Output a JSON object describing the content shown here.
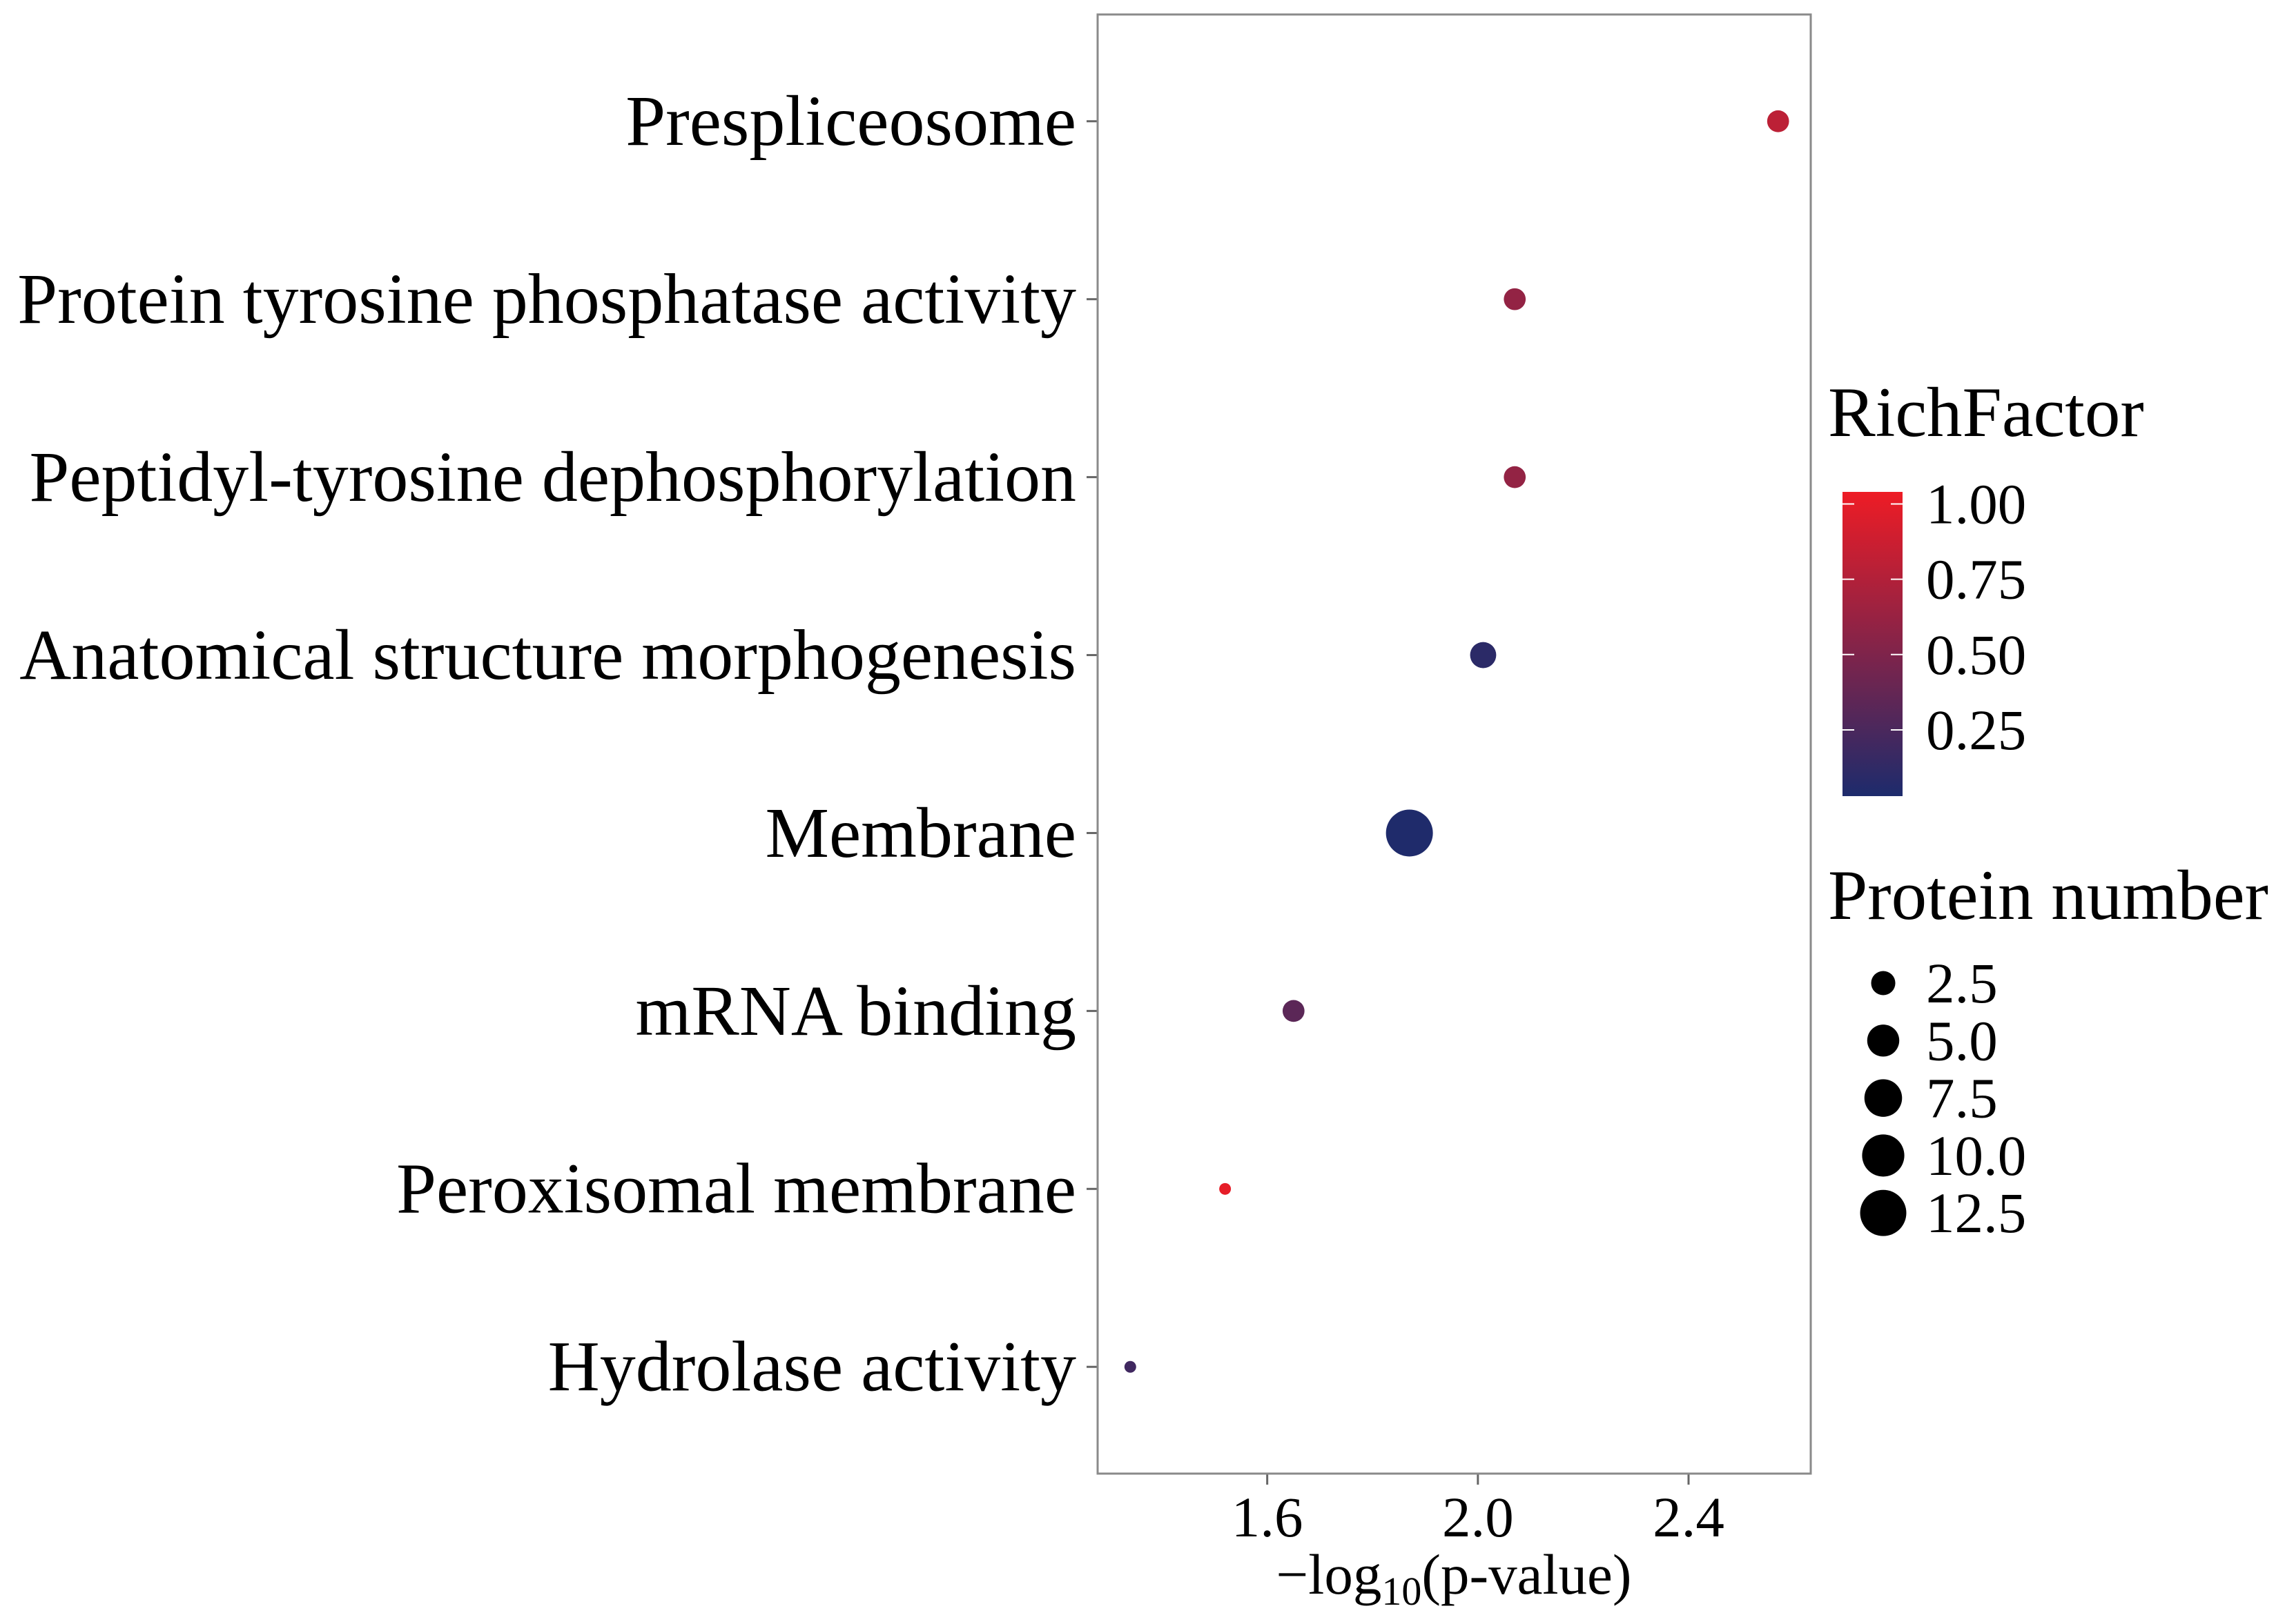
{
  "chart_data": {
    "type": "scatter",
    "categories": [
      "Prespliceosome",
      "Protein tyrosine phosphatase activity",
      "Peptidyl-tyrosine dephosphorylation",
      "Anatomical structure morphogenesis",
      "Membrane",
      "mRNA binding",
      "Peroxisomal membrane",
      "Hydrolase activity"
    ],
    "x": [
      2.57,
      2.07,
      2.07,
      2.01,
      1.87,
      1.65,
      1.52,
      1.34
    ],
    "protein_number": [
      2,
      2,
      2,
      3,
      13,
      2,
      1,
      1
    ],
    "rich_factor": [
      0.8,
      0.6,
      0.6,
      0.1,
      0.04,
      0.33,
      1.0,
      0.2
    ],
    "xlabel": {
      "main": "−log",
      "subscript": "10",
      "rest": "(p-value)"
    },
    "xlim": [
      1.278,
      2.632
    ],
    "xticks": [
      "1.6",
      "2.0",
      "2.4"
    ],
    "grid": false,
    "legend_position": "right",
    "color_legend": {
      "title": "RichFactor",
      "limits": [
        0.03,
        1.04
      ],
      "ticks": [
        "1.00",
        "0.75",
        "0.50",
        "0.25"
      ],
      "low_color": "#1d2b6c",
      "high_color": "#ee1c25"
    },
    "size_legend": {
      "title": "Protein number",
      "limits": [
        1,
        13
      ],
      "breaks": [
        "2.5",
        "5.0",
        "7.5",
        "10.0",
        "12.5"
      ],
      "key_color": "#000000"
    }
  }
}
